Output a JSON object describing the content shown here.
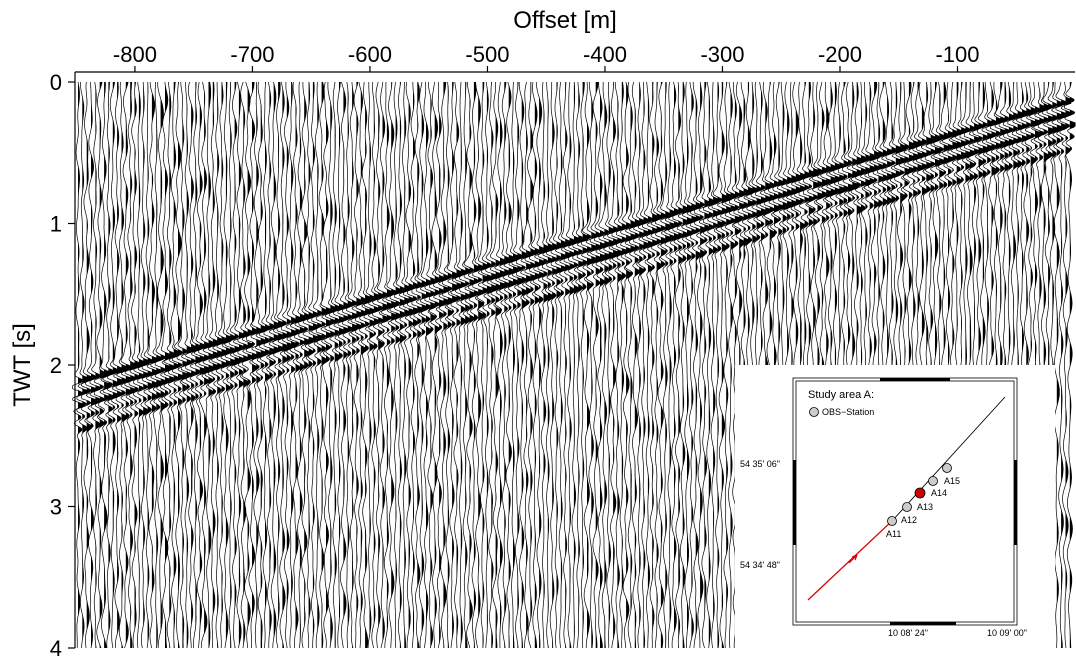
{
  "chart_data": {
    "type": "seismic",
    "x_label": "Offset [m]",
    "y_label": "TWT [s]",
    "xlim": [
      -851,
      0
    ],
    "xticks": [
      -800,
      -700,
      -600,
      -500,
      -400,
      -300,
      -200,
      -100
    ],
    "ylim": [
      0,
      4
    ],
    "yticks": [
      0,
      1,
      2,
      3,
      4
    ],
    "inset": {
      "title": "Study area A:",
      "legend": "OBS−Station",
      "lat_labels": [
        "54  35' 06\"",
        "54  34' 48\""
      ],
      "lon_labels": [
        "10  08' 24\"",
        "10  09' 00\""
      ],
      "stations": [
        "A11",
        "A12",
        "A13",
        "A14",
        "A15"
      ]
    }
  }
}
